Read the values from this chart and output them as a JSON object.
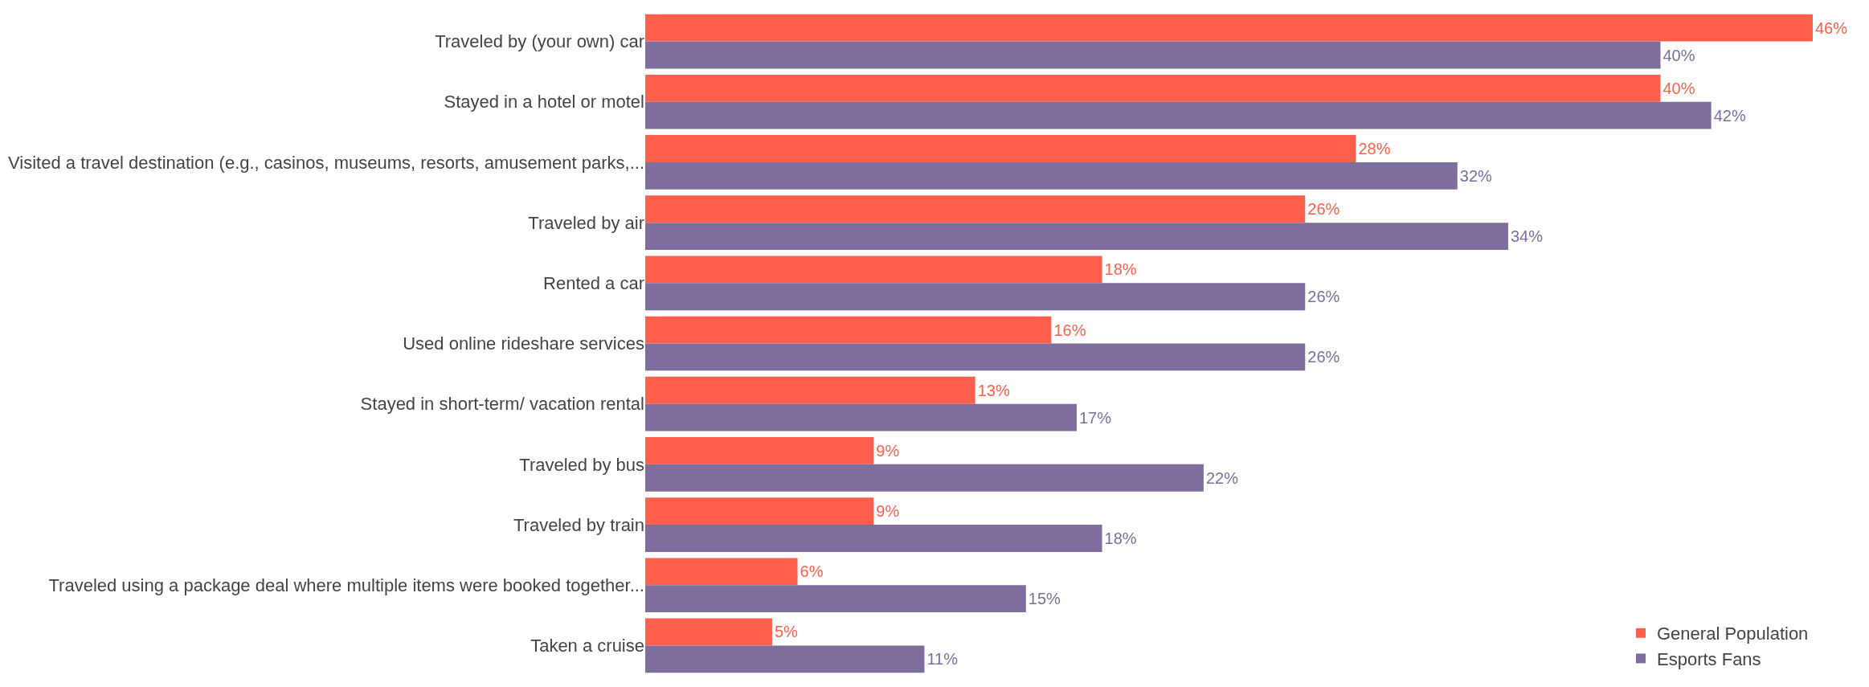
{
  "chart_data": {
    "type": "bar",
    "orientation": "horizontal",
    "categories": [
      "Traveled by (your own) car",
      "Stayed in a hotel or motel",
      "Visited a travel destination (e.g., casinos, museums, resorts, amusement parks,...",
      "Traveled by air",
      "Rented a car",
      "Used online rideshare services",
      "Stayed in short-term/ vacation rental",
      "Traveled by bus",
      "Traveled by train",
      "Traveled using a package deal where multiple items were booked together...",
      "Taken a cruise"
    ],
    "series": [
      {
        "name": "General Population",
        "color": "#ff5f4b",
        "values": [
          46,
          40,
          28,
          26,
          18,
          16,
          13,
          9,
          9,
          6,
          5
        ],
        "value_labels": [
          "46%",
          "40%",
          "28%",
          "26%",
          "18%",
          "16%",
          "13%",
          "9%",
          "9%",
          "6%",
          "5%"
        ]
      },
      {
        "name": "Esports Fans",
        "color": "#7e6e9d",
        "values": [
          40,
          42,
          32,
          34,
          26,
          26,
          17,
          22,
          18,
          15,
          11
        ],
        "value_labels": [
          "40%",
          "42%",
          "32%",
          "34%",
          "26%",
          "26%",
          "17%",
          "22%",
          "18%",
          "15%",
          "11%"
        ]
      }
    ],
    "legend": "bottom right"
  }
}
